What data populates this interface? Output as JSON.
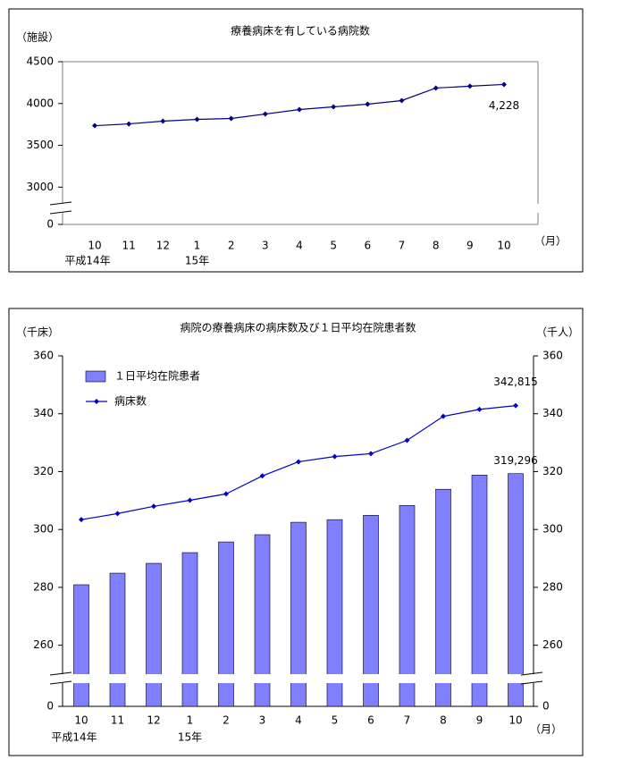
{
  "chart_data": [
    {
      "type": "line",
      "title": "療養病床を有している病院数",
      "y_unit": "（施設）",
      "x_unit": "（月）",
      "categories": [
        "10",
        "11",
        "12",
        "1",
        "2",
        "3",
        "4",
        "5",
        "6",
        "7",
        "8",
        "9",
        "10"
      ],
      "category_sublabels": [
        "平成14年",
        null,
        null,
        "15年",
        null,
        null,
        null,
        null,
        null,
        null,
        null,
        null,
        null
      ],
      "ylim": [
        0,
        4500
      ],
      "axis_break": [
        0,
        2800
      ],
      "yticks": [
        0,
        3000,
        3500,
        4000,
        4500
      ],
      "series": [
        {
          "name": null,
          "color": "#000080",
          "values": [
            3735,
            3756,
            3789,
            3810,
            3821,
            3874,
            3928,
            3960,
            3992,
            4035,
            4185,
            4207,
            4228
          ],
          "value_labels": [
            null,
            null,
            null,
            null,
            null,
            null,
            null,
            null,
            null,
            null,
            null,
            null,
            "4,228"
          ]
        }
      ]
    },
    {
      "type": "combo",
      "title": "病院の療養病床の病床数及び１日平均在院患者数",
      "y_unit": "（千床）",
      "y2_unit": "（千人）",
      "x_unit": "（月）",
      "categories": [
        "10",
        "11",
        "12",
        "1",
        "2",
        "3",
        "4",
        "5",
        "6",
        "7",
        "8",
        "9",
        "10"
      ],
      "category_sublabels": [
        "平成14年",
        null,
        null,
        "15年",
        null,
        null,
        null,
        null,
        null,
        null,
        null,
        null,
        null
      ],
      "ylim": [
        0,
        360
      ],
      "y2lim": [
        0,
        360
      ],
      "axis_break": [
        0,
        250
      ],
      "yticks": [
        0,
        260,
        280,
        300,
        320,
        340,
        360
      ],
      "y2ticks": [
        0,
        260,
        280,
        300,
        320,
        340,
        360
      ],
      "series": [
        {
          "name": "１日平均在院患者",
          "type": "bar",
          "axis": "y2",
          "color": "#8080ff",
          "values": [
            280.9,
            284.9,
            288.3,
            292.0,
            295.7,
            298.2,
            302.5,
            303.4,
            304.9,
            308.3,
            313.9,
            318.8,
            319.296
          ],
          "value_labels": [
            null,
            null,
            null,
            null,
            null,
            null,
            null,
            null,
            null,
            null,
            null,
            null,
            "319,296"
          ]
        },
        {
          "name": "病床数",
          "type": "line",
          "color": "#0000cc",
          "values": [
            303.4,
            305.5,
            308.0,
            310.1,
            312.3,
            318.5,
            323.4,
            325.2,
            326.2,
            330.8,
            339.1,
            341.5,
            342.815
          ],
          "value_labels": [
            null,
            null,
            null,
            null,
            null,
            null,
            null,
            null,
            null,
            null,
            null,
            null,
            "342,815"
          ]
        }
      ]
    }
  ]
}
